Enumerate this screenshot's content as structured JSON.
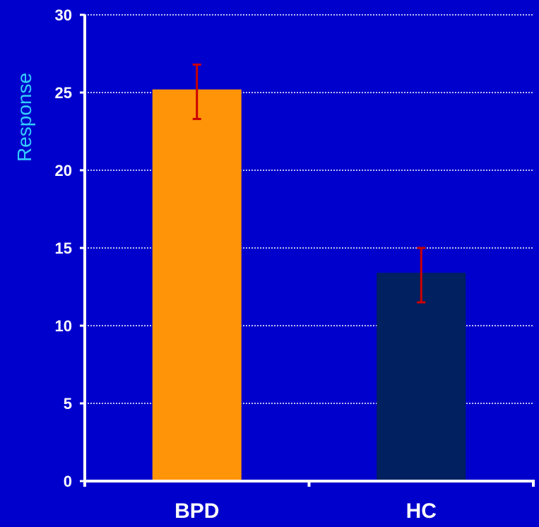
{
  "chart_data": {
    "type": "bar",
    "title": "",
    "xlabel": "",
    "ylabel": "Response",
    "categories": [
      "BPD",
      "HC"
    ],
    "values": [
      25.2,
      13.4
    ],
    "error_bars": {
      "upper": [
        26.8,
        15.0
      ],
      "lower": [
        23.3,
        11.5
      ]
    },
    "ylim": [
      0,
      30
    ],
    "yticks": [
      "0",
      "5",
      "10",
      "15",
      "20",
      "25",
      "30"
    ],
    "grid": true,
    "grid_style": "dotted",
    "bar_colors": [
      "#FF9408",
      "#002060"
    ],
    "error_bar_color": "#CC0000",
    "background_color": "#0000CC",
    "axis_color": "#FFFFFF",
    "ylabel_color": "#33CCFF",
    "legend": "none"
  }
}
